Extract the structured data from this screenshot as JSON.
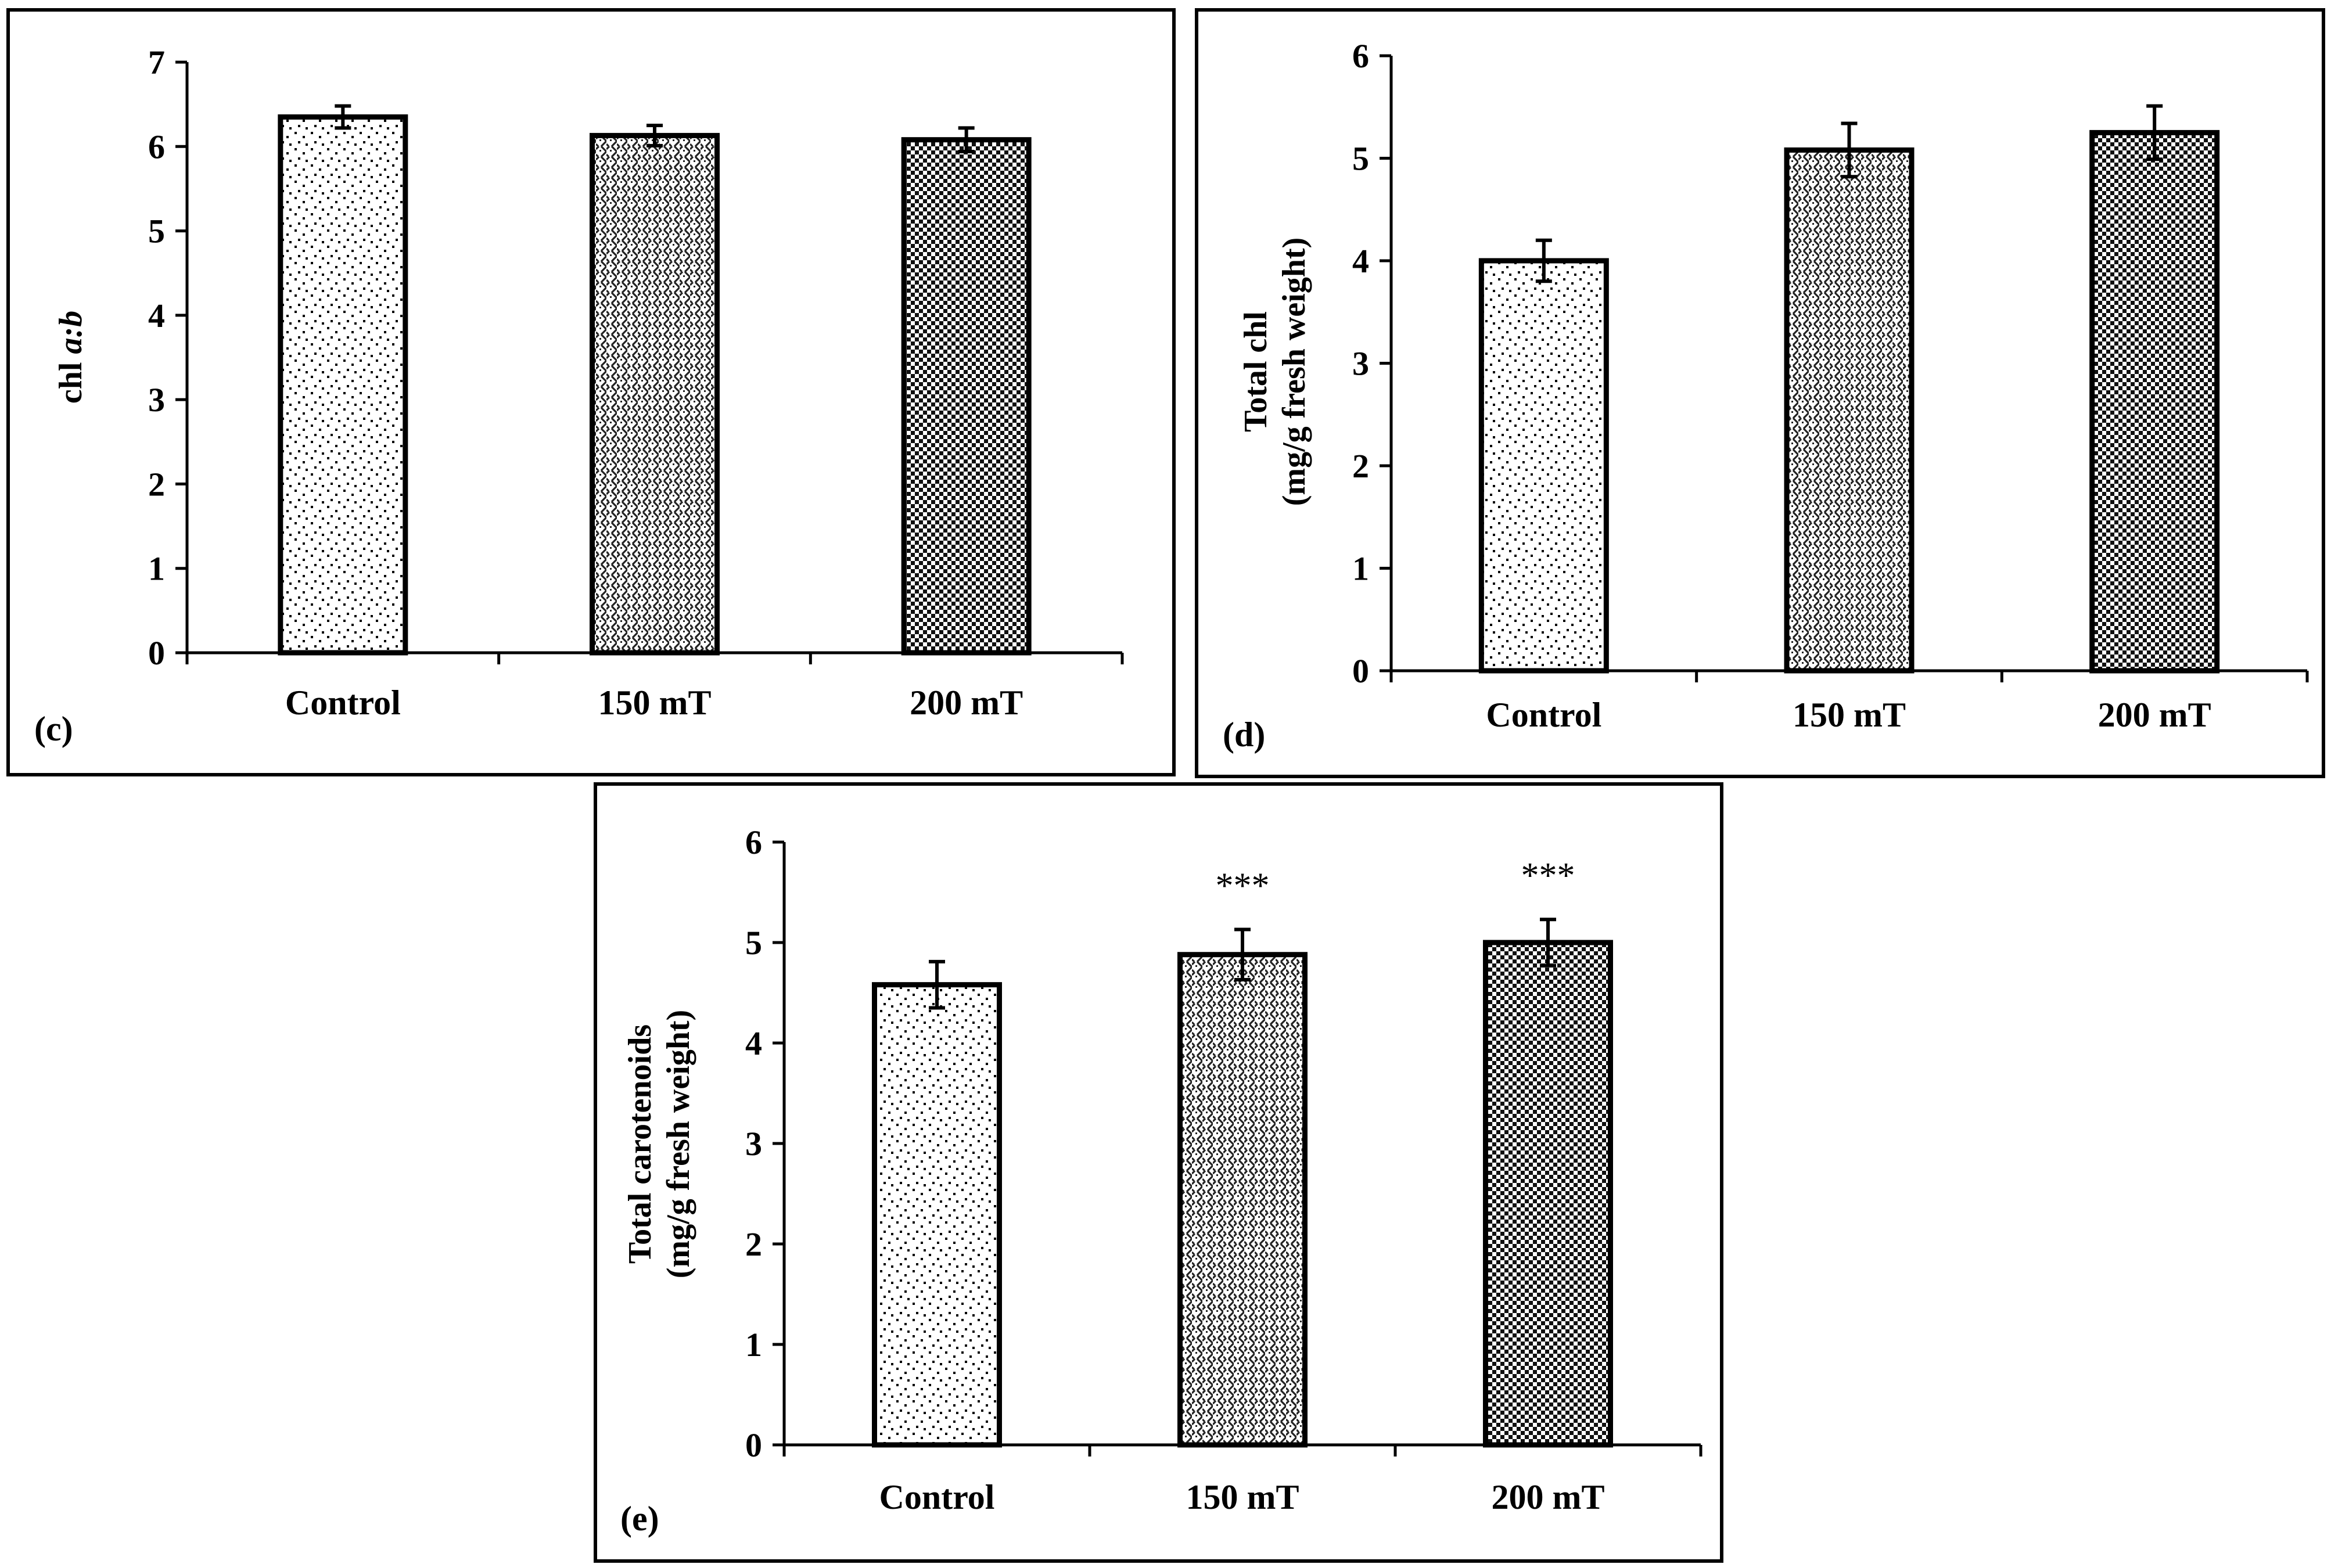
{
  "figure": {
    "background": "#ffffff",
    "foreground": "#000000"
  },
  "chart_data": [
    {
      "id": "c",
      "type": "bar",
      "panel_label": "(c)",
      "title": "",
      "xlabel": "",
      "ylabel": "chl",
      "ylabel_italic_part": "a:b",
      "ylabel_lines": [],
      "categories": [
        "Control",
        "150 mT",
        "200 mT"
      ],
      "values": [
        6.35,
        6.13,
        6.08
      ],
      "errors": [
        0.13,
        0.12,
        0.14
      ],
      "significance": [
        "",
        "",
        ""
      ],
      "patterns": [
        "dots-sparse",
        "zigzag",
        "checker"
      ],
      "ylim": [
        0,
        7
      ],
      "yticks": [
        0,
        1,
        2,
        3,
        4,
        5,
        6,
        7
      ],
      "grid": false,
      "legend": "none"
    },
    {
      "id": "d",
      "type": "bar",
      "panel_label": "(d)",
      "title": "",
      "xlabel": "",
      "ylabel_lines": [
        "Total  chl",
        "(mg/g fresh weight)"
      ],
      "categories": [
        "Control",
        "150 mT",
        "200 mT"
      ],
      "values": [
        4.0,
        5.08,
        5.25
      ],
      "errors": [
        0.2,
        0.26,
        0.26
      ],
      "significance": [
        "",
        "",
        ""
      ],
      "patterns": [
        "dots-sparse",
        "zigzag",
        "checker"
      ],
      "ylim": [
        0,
        6
      ],
      "yticks": [
        0,
        1,
        2,
        3,
        4,
        5,
        6
      ],
      "grid": false,
      "legend": "none"
    },
    {
      "id": "e",
      "type": "bar",
      "panel_label": "(e)",
      "title": "",
      "xlabel": "",
      "ylabel_lines": [
        "Total  carotenoids",
        "(mg/g fresh weight)"
      ],
      "categories": [
        "Control",
        "150 mT",
        "200 mT"
      ],
      "values": [
        4.58,
        4.88,
        5.0
      ],
      "errors": [
        0.23,
        0.25,
        0.23
      ],
      "significance": [
        "",
        "***",
        "***"
      ],
      "patterns": [
        "dots-sparse",
        "zigzag",
        "checker"
      ],
      "ylim": [
        0,
        6
      ],
      "yticks": [
        0,
        1,
        2,
        3,
        4,
        5,
        6
      ],
      "grid": false,
      "legend": "none"
    }
  ]
}
